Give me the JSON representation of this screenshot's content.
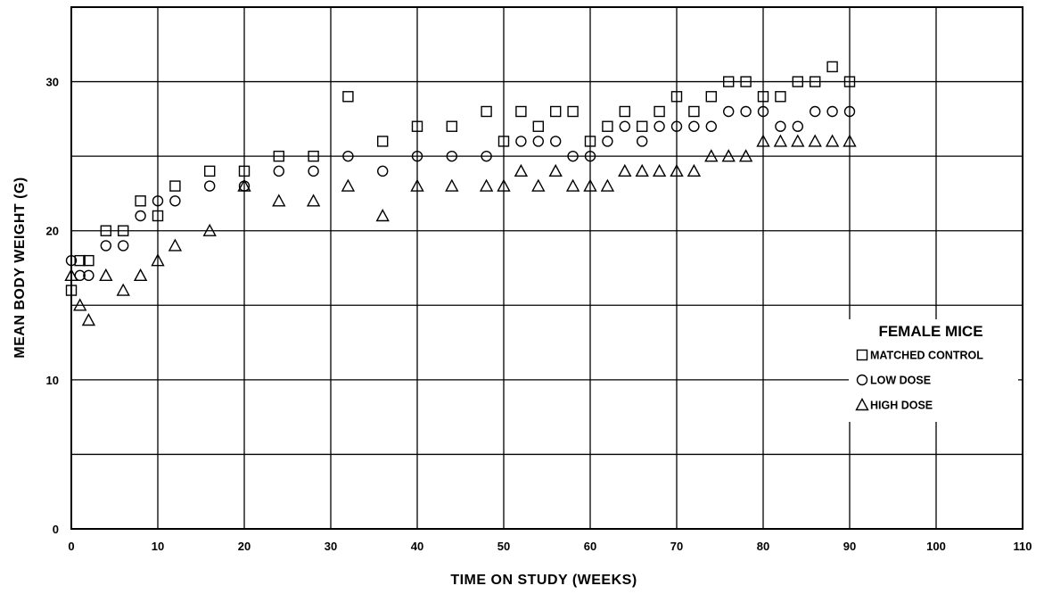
{
  "chart_data": {
    "type": "scatter",
    "title": "",
    "xlabel": "TIME ON STUDY (WEEKS)",
    "ylabel": "MEAN BODY WEIGHT (G)",
    "xlim": [
      0,
      110
    ],
    "ylim": [
      0,
      35
    ],
    "x_ticks": [
      "0",
      "10",
      "20",
      "30",
      "40",
      "50",
      "60",
      "70",
      "80",
      "90",
      "100",
      "110"
    ],
    "y_ticks": [
      "0",
      "10",
      "20",
      "30"
    ],
    "grid": true,
    "legend_title": "FEMALE MICE",
    "legend_position": "right",
    "series": [
      {
        "name": "MATCHED CONTROL",
        "marker": "square",
        "x": [
          0,
          1,
          2,
          4,
          6,
          8,
          10,
          12,
          16,
          20,
          24,
          28,
          32,
          36,
          40,
          44,
          48,
          50,
          52,
          54,
          56,
          58,
          60,
          62,
          64,
          66,
          68,
          70,
          72,
          74,
          76,
          78,
          80,
          82,
          84,
          86,
          88,
          90
        ],
        "y": [
          16,
          18,
          18,
          20,
          20,
          22,
          21,
          23,
          24,
          24,
          25,
          25,
          29,
          26,
          27,
          27,
          28,
          26,
          28,
          27,
          28,
          28,
          26,
          27,
          28,
          27,
          28,
          29,
          28,
          29,
          30,
          30,
          29,
          29,
          30,
          30,
          31,
          30
        ]
      },
      {
        "name": "LOW DOSE",
        "marker": "circle",
        "x": [
          0,
          1,
          2,
          4,
          6,
          8,
          10,
          12,
          16,
          20,
          24,
          28,
          32,
          36,
          40,
          44,
          48,
          52,
          54,
          56,
          58,
          60,
          62,
          64,
          66,
          68,
          70,
          72,
          74,
          76,
          78,
          80,
          82,
          84,
          86,
          88,
          90
        ],
        "y": [
          18,
          17,
          17,
          19,
          19,
          21,
          22,
          22,
          23,
          23,
          24,
          24,
          25,
          24,
          25,
          25,
          25,
          26,
          26,
          26,
          25,
          25,
          26,
          27,
          26,
          27,
          27,
          27,
          27,
          28,
          28,
          28,
          27,
          27,
          28,
          28,
          28
        ]
      },
      {
        "name": "HIGH DOSE",
        "marker": "triangle",
        "x": [
          0,
          1,
          2,
          4,
          6,
          8,
          10,
          12,
          16,
          20,
          24,
          28,
          32,
          36,
          40,
          44,
          48,
          50,
          52,
          54,
          56,
          58,
          60,
          62,
          64,
          66,
          68,
          70,
          72,
          74,
          76,
          78,
          80,
          82,
          84,
          86,
          88,
          90
        ],
        "y": [
          17,
          15,
          14,
          17,
          16,
          17,
          18,
          19,
          20,
          23,
          22,
          22,
          23,
          21,
          23,
          23,
          23,
          23,
          24,
          23,
          24,
          23,
          23,
          23,
          24,
          24,
          24,
          24,
          24,
          25,
          25,
          25,
          26,
          26,
          26,
          26,
          26,
          26
        ]
      }
    ]
  }
}
